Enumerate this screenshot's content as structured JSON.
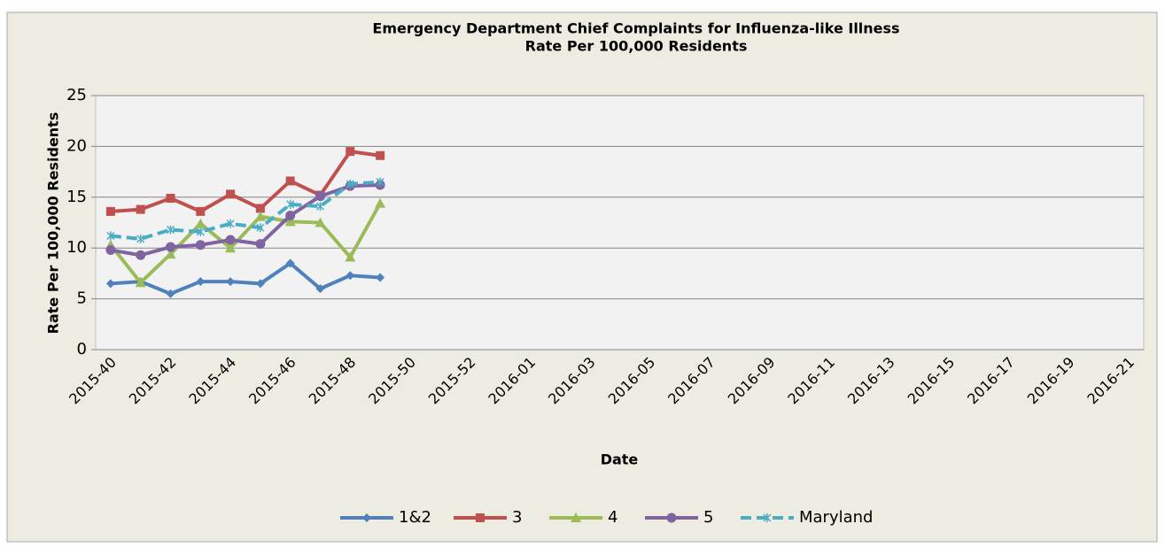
{
  "chart_data": {
    "type": "line",
    "title": "Emergency Department Chief Complaints for Influenza-like Illness",
    "subtitle": "Rate Per 100,000 Residents",
    "x_label": "Date",
    "y_label": "Rate Per 100,000 Residents",
    "categories": [
      "2015-40",
      null,
      "2015-42",
      null,
      "2015-44",
      null,
      "2015-46",
      null,
      "2015-48",
      null,
      "2015-50",
      null,
      "2015-52",
      null,
      "2016-01",
      null,
      "2016-03",
      null,
      "2016-05",
      null,
      "2016-07",
      null,
      "2016-09",
      null,
      "2016-11",
      null,
      "2016-13",
      null,
      "2016-15",
      null,
      "2016-17",
      null,
      "2016-19",
      null,
      "2016-21"
    ],
    "ylim": [
      0,
      25
    ],
    "yticks": [
      0,
      5,
      10,
      15,
      20,
      25
    ],
    "grid": true,
    "legend": "bottom",
    "series": [
      {
        "name": "1&2",
        "color": "#4f81bd",
        "marker": "diamond",
        "dash": false,
        "values": [
          6.5,
          6.7,
          5.5,
          6.7,
          6.7,
          6.5,
          8.5,
          6.0,
          7.3,
          7.1,
          null,
          null,
          null,
          null,
          null,
          null,
          null,
          null,
          null,
          null,
          null,
          null,
          null,
          null,
          null,
          null,
          null,
          null,
          null,
          null,
          null,
          null,
          null,
          null,
          null
        ]
      },
      {
        "name": "3",
        "color": "#c0504d",
        "marker": "square",
        "dash": false,
        "values": [
          13.6,
          13.8,
          14.9,
          13.6,
          15.3,
          13.9,
          16.6,
          15.2,
          19.5,
          19.1,
          null,
          null,
          null,
          null,
          null,
          null,
          null,
          null,
          null,
          null,
          null,
          null,
          null,
          null,
          null,
          null,
          null,
          null,
          null,
          null,
          null,
          null,
          null,
          null,
          null
        ]
      },
      {
        "name": "4",
        "color": "#9bbb59",
        "marker": "triangle",
        "dash": false,
        "values": [
          10.3,
          6.6,
          9.4,
          12.4,
          10.0,
          13.1,
          12.6,
          12.5,
          9.1,
          14.4,
          null,
          null,
          null,
          null,
          null,
          null,
          null,
          null,
          null,
          null,
          null,
          null,
          null,
          null,
          null,
          null,
          null,
          null,
          null,
          null,
          null,
          null,
          null,
          null,
          null
        ]
      },
      {
        "name": "5",
        "color": "#8064a2",
        "marker": "circle",
        "dash": false,
        "values": [
          9.8,
          9.3,
          10.1,
          10.3,
          10.8,
          10.4,
          13.2,
          15.1,
          16.1,
          16.2,
          null,
          null,
          null,
          null,
          null,
          null,
          null,
          null,
          null,
          null,
          null,
          null,
          null,
          null,
          null,
          null,
          null,
          null,
          null,
          null,
          null,
          null,
          null,
          null,
          null
        ]
      },
      {
        "name": "Maryland",
        "color": "#4bacc6",
        "marker": "star",
        "dash": true,
        "values": [
          11.2,
          10.9,
          11.8,
          11.6,
          12.4,
          12.0,
          14.3,
          14.1,
          16.3,
          16.5,
          null,
          null,
          null,
          null,
          null,
          null,
          null,
          null,
          null,
          null,
          null,
          null,
          null,
          null,
          null,
          null,
          null,
          null,
          null,
          null,
          null,
          null,
          null,
          null,
          null
        ]
      }
    ]
  }
}
